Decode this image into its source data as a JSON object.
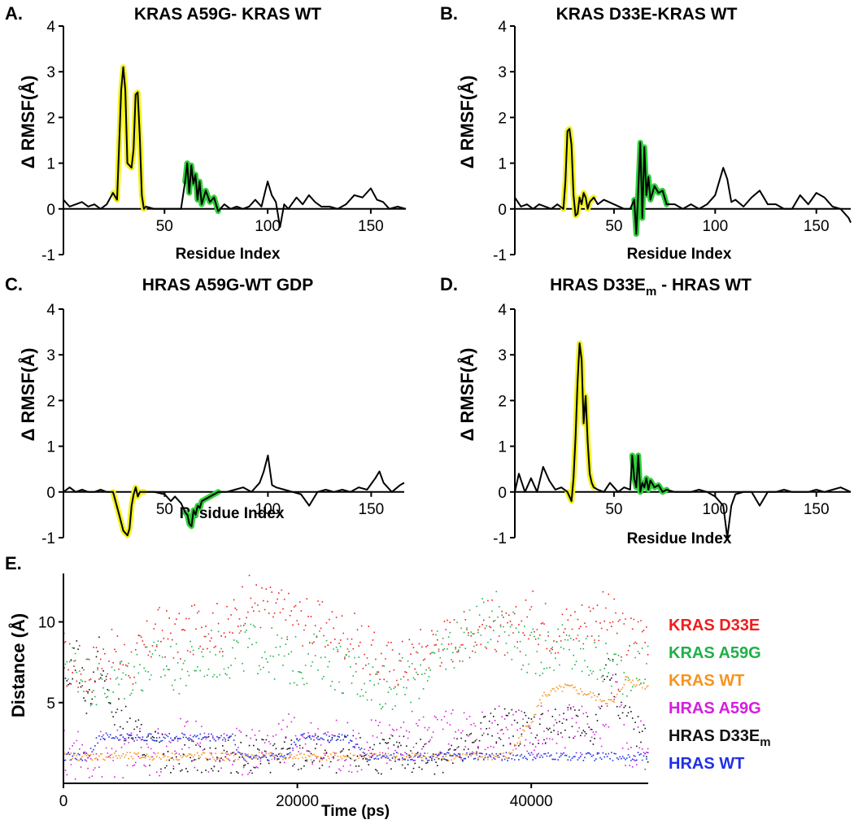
{
  "chart_data": [
    {
      "type": "line",
      "panel_label": "A.",
      "title": "KRAS A59G- KRAS WT",
      "xlabel": "Residue Index",
      "ylabel": "Δ RMSF(Å)",
      "xlim": [
        1,
        167
      ],
      "ylim": [
        -1,
        4
      ],
      "xticks": [
        50,
        100,
        150
      ],
      "yticks": [
        -1,
        0,
        1,
        2,
        3,
        4
      ],
      "highlight_colors": {
        "switch_I": "#f2f21e",
        "switch_II": "#2fd13a"
      },
      "highlights": [
        {
          "name": "switch_I",
          "range": [
            25,
            40
          ]
        },
        {
          "name": "switch_II",
          "range": [
            59,
            76
          ]
        }
      ],
      "x": [
        1,
        4,
        7,
        10,
        13,
        16,
        19,
        22,
        25,
        27,
        28,
        29,
        30,
        31,
        32,
        34,
        35,
        36,
        37,
        38,
        39,
        40,
        41,
        45,
        50,
        55,
        58,
        60,
        61,
        62,
        63,
        64,
        65,
        66,
        67,
        68,
        70,
        72,
        74,
        76,
        79,
        82,
        85,
        88,
        91,
        94,
        97,
        100,
        102,
        104,
        106,
        108,
        110,
        114,
        117,
        120,
        123,
        126,
        130,
        134,
        138,
        142,
        146,
        150,
        153,
        156,
        159,
        163,
        167
      ],
      "values": [
        0.2,
        0.05,
        0.1,
        0.15,
        0.05,
        0.1,
        0.0,
        0.1,
        0.35,
        0.2,
        1.4,
        2.6,
        3.1,
        2.6,
        1.0,
        0.9,
        1.3,
        2.5,
        2.55,
        1.6,
        0.3,
        0.0,
        0.05,
        0.0,
        0.0,
        0.0,
        0.0,
        0.6,
        1.0,
        0.35,
        0.95,
        0.55,
        0.75,
        0.2,
        0.6,
        0.1,
        0.4,
        0.15,
        0.25,
        -0.05,
        0.1,
        0.0,
        0.05,
        0.0,
        0.05,
        0.2,
        0.05,
        0.6,
        0.3,
        0.15,
        -0.4,
        0.1,
        0.0,
        0.25,
        0.1,
        0.3,
        0.15,
        0.05,
        0.05,
        0.0,
        0.1,
        0.3,
        0.25,
        0.45,
        0.2,
        0.15,
        0.0,
        0.05,
        0.0
      ]
    },
    {
      "type": "line",
      "panel_label": "B.",
      "title": "KRAS D33E-KRAS WT",
      "xlabel": "Residue Index",
      "ylabel": "Δ RMSF(Å)",
      "xlim": [
        1,
        167
      ],
      "ylim": [
        -1,
        4
      ],
      "xticks": [
        50,
        100,
        150
      ],
      "yticks": [
        -1,
        0,
        1,
        2,
        3,
        4
      ],
      "highlight_colors": {
        "switch_I": "#f2f21e",
        "switch_II": "#2fd13a"
      },
      "highlights": [
        {
          "name": "switch_I",
          "range": [
            25,
            40
          ]
        },
        {
          "name": "switch_II",
          "range": [
            59,
            76
          ]
        }
      ],
      "x": [
        1,
        4,
        7,
        10,
        13,
        16,
        19,
        22,
        25,
        26,
        27,
        28,
        29,
        30,
        31,
        32,
        33,
        34,
        35,
        36,
        37,
        38,
        40,
        42,
        45,
        50,
        55,
        58,
        60,
        61,
        62,
        63,
        64,
        65,
        66,
        67,
        68,
        70,
        72,
        74,
        76,
        80,
        84,
        88,
        92,
        96,
        100,
        104,
        106,
        108,
        110,
        114,
        118,
        122,
        126,
        130,
        134,
        138,
        142,
        146,
        150,
        154,
        158,
        162,
        166,
        167
      ],
      "values": [
        0.25,
        0.05,
        0.1,
        0.0,
        0.1,
        0.05,
        0.0,
        0.1,
        0.0,
        0.6,
        1.7,
        1.75,
        1.4,
        0.3,
        -0.15,
        -0.1,
        0.25,
        0.1,
        0.35,
        0.25,
        0.0,
        0.15,
        0.25,
        0.1,
        0.2,
        0.1,
        0.0,
        0.0,
        0.2,
        -0.55,
        0.4,
        1.45,
        -0.2,
        1.35,
        0.3,
        0.7,
        0.2,
        0.5,
        0.35,
        0.4,
        0.1,
        0.1,
        0.0,
        0.1,
        0.0,
        0.1,
        0.3,
        0.9,
        0.65,
        0.15,
        0.2,
        0.05,
        0.25,
        0.4,
        0.1,
        0.1,
        0.0,
        0.0,
        0.3,
        0.1,
        0.35,
        0.25,
        0.05,
        0.0,
        -0.2,
        -0.3
      ]
    },
    {
      "type": "line",
      "panel_label": "C.",
      "title": "HRAS A59G-WT GDP",
      "xlabel": "Residue Index",
      "ylabel": "Δ RMSF(Å)",
      "xlim": [
        1,
        166
      ],
      "ylim": [
        -1,
        4
      ],
      "xticks": [
        50,
        100,
        150
      ],
      "yticks": [
        -1,
        0,
        1,
        2,
        3,
        4
      ],
      "highlight_colors": {
        "switch_I": "#f2f21e",
        "switch_II": "#2fd13a"
      },
      "highlights": [
        {
          "name": "switch_I",
          "range": [
            25,
            40
          ]
        },
        {
          "name": "switch_II",
          "range": [
            59,
            76
          ]
        }
      ],
      "x": [
        1,
        4,
        7,
        10,
        13,
        16,
        19,
        22,
        25,
        28,
        30,
        32,
        33,
        34,
        35,
        36,
        37,
        38,
        40,
        45,
        50,
        53,
        55,
        58,
        60,
        61,
        62,
        63,
        64,
        65,
        66,
        67,
        68,
        70,
        72,
        74,
        76,
        80,
        84,
        88,
        92,
        96,
        98,
        100,
        102,
        104,
        108,
        112,
        116,
        120,
        124,
        128,
        132,
        136,
        140,
        144,
        148,
        152,
        154,
        156,
        160,
        164,
        166
      ],
      "values": [
        0.0,
        0.1,
        0.0,
        0.05,
        0.0,
        0.0,
        0.05,
        0.0,
        0.0,
        -0.5,
        -0.85,
        -0.95,
        -0.8,
        -0.3,
        -0.05,
        0.1,
        -0.1,
        0.0,
        0.0,
        0.0,
        -0.05,
        -0.2,
        -0.1,
        -0.25,
        -0.45,
        -0.5,
        -0.7,
        -0.75,
        -0.4,
        -0.5,
        -0.3,
        -0.35,
        -0.2,
        -0.15,
        -0.1,
        -0.05,
        0.0,
        0.0,
        0.05,
        0.1,
        0.0,
        0.2,
        0.45,
        0.8,
        0.15,
        0.1,
        0.05,
        0.0,
        -0.05,
        -0.3,
        0.0,
        0.05,
        0.0,
        0.05,
        0.0,
        0.1,
        0.05,
        0.3,
        0.45,
        0.2,
        0.0,
        0.15,
        0.2
      ]
    },
    {
      "type": "line",
      "panel_label": "D.",
      "title_parts": {
        "prefix": "HRAS D33E",
        "subscript": "m",
        "suffix": " - HRAS WT"
      },
      "xlabel": "Residue Index",
      "ylabel": "Δ RMSF(Å)",
      "xlim": [
        1,
        167
      ],
      "ylim": [
        -1,
        4
      ],
      "xticks": [
        50,
        100,
        150
      ],
      "yticks": [
        -1,
        0,
        1,
        2,
        3,
        4
      ],
      "highlight_colors": {
        "switch_I": "#f2f21e",
        "switch_II": "#2fd13a"
      },
      "highlights": [
        {
          "name": "switch_I",
          "range": [
            25,
            40
          ]
        },
        {
          "name": "switch_II",
          "range": [
            59,
            76
          ]
        }
      ],
      "x": [
        1,
        3,
        6,
        9,
        12,
        15,
        18,
        21,
        24,
        27,
        28,
        29,
        30,
        31,
        32,
        33,
        34,
        35,
        36,
        37,
        38,
        39,
        40,
        42,
        45,
        48,
        52,
        55,
        58,
        59,
        60,
        61,
        62,
        63,
        64,
        65,
        66,
        67,
        68,
        70,
        72,
        74,
        76,
        80,
        84,
        88,
        92,
        96,
        100,
        102,
        104,
        106,
        108,
        110,
        114,
        118,
        122,
        126,
        130,
        134,
        138,
        142,
        146,
        150,
        154,
        158,
        162,
        167
      ],
      "values": [
        0.0,
        0.4,
        0.0,
        0.3,
        0.0,
        0.55,
        0.25,
        0.05,
        0.1,
        0.0,
        -0.1,
        -0.2,
        0.3,
        1.2,
        2.4,
        3.25,
        2.9,
        1.5,
        2.1,
        1.1,
        0.4,
        0.2,
        0.1,
        0.05,
        0.0,
        0.2,
        0.0,
        0.1,
        0.05,
        0.8,
        0.3,
        0.1,
        0.8,
        0.0,
        0.2,
        0.1,
        0.3,
        0.05,
        0.25,
        0.1,
        0.15,
        0.0,
        0.05,
        0.0,
        0.0,
        0.0,
        0.05,
        0.0,
        -0.1,
        -0.2,
        -0.3,
        -1.0,
        -0.3,
        -0.05,
        0.0,
        0.0,
        -0.3,
        0.0,
        0.0,
        0.05,
        0.0,
        0.0,
        0.0,
        0.05,
        0.0,
        0.05,
        0.1,
        0.0
      ]
    },
    {
      "type": "scatter",
      "panel_label": "E.",
      "xlabel": "Time (ps)",
      "ylabel": "Distance (Å)",
      "xlim": [
        0,
        50000
      ],
      "ylim": [
        0,
        13
      ],
      "xticks": [
        0,
        20000,
        40000
      ],
      "yticks": [
        5,
        10
      ],
      "series": [
        {
          "name": "KRAS D33E",
          "color": "#ef1d1d",
          "x": [
            0,
            2000,
            4000,
            6000,
            8000,
            10000,
            12000,
            14000,
            15500,
            17000,
            19000,
            21000,
            23000,
            25000,
            27000,
            29000,
            31000,
            33000,
            35000,
            36500,
            38000,
            40000,
            42000,
            44000,
            46000,
            47000,
            48000,
            50000
          ],
          "values": [
            7.5,
            7.0,
            8.0,
            7.5,
            9.5,
            9.0,
            10.0,
            9.5,
            11.5,
            11.0,
            10.5,
            10.0,
            9.5,
            9.0,
            7.5,
            7.5,
            8.5,
            9.0,
            9.5,
            10.0,
            9.0,
            10.5,
            9.5,
            10.0,
            10.5,
            10.0,
            9.0,
            9.5
          ]
        },
        {
          "name": "KRAS A59G",
          "color": "#1fb048",
          "x": [
            0,
            2000,
            4000,
            6000,
            8000,
            10000,
            12000,
            14000,
            16000,
            18000,
            20000,
            22000,
            24000,
            26000,
            28000,
            30000,
            32000,
            34000,
            36000,
            37000,
            38000,
            40000,
            42000,
            44000,
            46000,
            48000,
            50000
          ],
          "values": [
            8.0,
            6.5,
            6.0,
            7.0,
            7.5,
            7.0,
            8.0,
            8.0,
            8.5,
            8.0,
            7.5,
            8.0,
            7.0,
            6.5,
            6.0,
            6.5,
            8.0,
            9.0,
            10.0,
            11.0,
            9.5,
            8.0,
            8.5,
            8.0,
            7.5,
            7.0,
            7.5
          ]
        },
        {
          "name": "KRAS WT",
          "color": "#f7931e",
          "x": [
            0,
            5000,
            10000,
            15000,
            20000,
            25000,
            30000,
            35000,
            38000,
            40000,
            41000,
            43000,
            45000,
            47000,
            48000,
            50000
          ],
          "values": [
            1.7,
            1.7,
            1.7,
            1.7,
            1.7,
            1.7,
            1.7,
            1.7,
            1.7,
            4.0,
            5.5,
            6.0,
            5.5,
            5.0,
            6.5,
            6.0
          ]
        },
        {
          "name": "HRAS A59G",
          "color": "#d61de0",
          "x": [
            0,
            3000,
            6000,
            9000,
            10000,
            12000,
            15000,
            18000,
            20000,
            24000,
            26000,
            28000,
            30000,
            32000,
            34000,
            36000,
            38000,
            40000,
            42000,
            44000,
            46000,
            47000,
            48000,
            50000
          ],
          "values": [
            1.8,
            1.8,
            1.8,
            2.0,
            3.0,
            2.2,
            2.0,
            2.5,
            3.0,
            2.3,
            2.3,
            2.8,
            3.0,
            3.0,
            3.1,
            3.1,
            3.3,
            3.3,
            3.3,
            3.3,
            3.3,
            6.0,
            2.0,
            2.5
          ]
        },
        {
          "name": "HRAS D33Em",
          "name_parts": {
            "main": "HRAS D33E",
            "subscript": "m"
          },
          "color": "#111111",
          "x": [
            0,
            1000,
            2000,
            3000,
            4000,
            5000,
            6000,
            8000,
            10000,
            14000,
            18000,
            22000,
            26000,
            30000,
            34000,
            36000,
            38000,
            40000,
            42000,
            44000,
            45500,
            46500,
            47500,
            50000
          ],
          "values": [
            6.0,
            8.0,
            5.0,
            8.0,
            4.5,
            4.0,
            3.0,
            2.0,
            1.8,
            1.8,
            1.8,
            1.8,
            1.8,
            1.8,
            1.8,
            3.5,
            3.6,
            3.5,
            3.6,
            3.5,
            3.5,
            8.0,
            5.0,
            2.0
          ]
        },
        {
          "name": "HRAS WT",
          "color": "#1f2fe8",
          "x": [
            0,
            1000,
            2000,
            3000,
            5000,
            8000,
            11000,
            14500,
            15000,
            17000,
            19000,
            20000,
            22000,
            24000,
            26000,
            30000,
            34000,
            38000,
            42000,
            46000,
            50000
          ],
          "values": [
            1.7,
            1.7,
            1.7,
            2.9,
            2.9,
            2.9,
            2.9,
            2.9,
            1.7,
            1.7,
            1.7,
            2.9,
            2.9,
            2.9,
            1.7,
            1.7,
            1.7,
            1.7,
            1.7,
            1.7,
            1.7
          ]
        }
      ]
    }
  ]
}
